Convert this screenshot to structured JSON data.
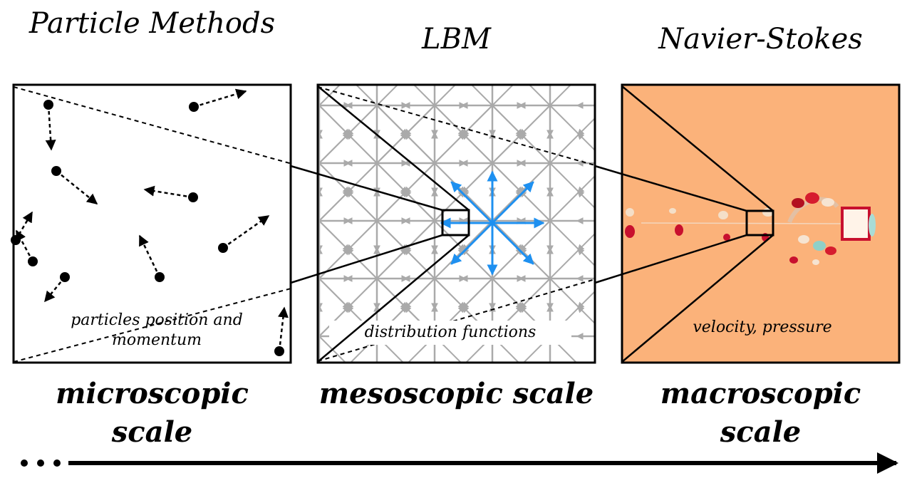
{
  "titles": {
    "particle": "Particle Methods",
    "lbm": "LBM",
    "ns": "Navier-Stokes"
  },
  "captions": {
    "particle": "particles position and momentum",
    "lbm": "distribution functions",
    "ns": "velocity, pressure"
  },
  "scales": {
    "micro": "microscopic scale",
    "meso": "mesoscopic scale",
    "macro": "macroscopic scale"
  },
  "ellipsis": "...",
  "colors": {
    "lattice_gray": "#aaaaaa",
    "d2q9_blue": "#1e90f0",
    "flow_background": "#fbb27a",
    "frame": "#000000"
  }
}
